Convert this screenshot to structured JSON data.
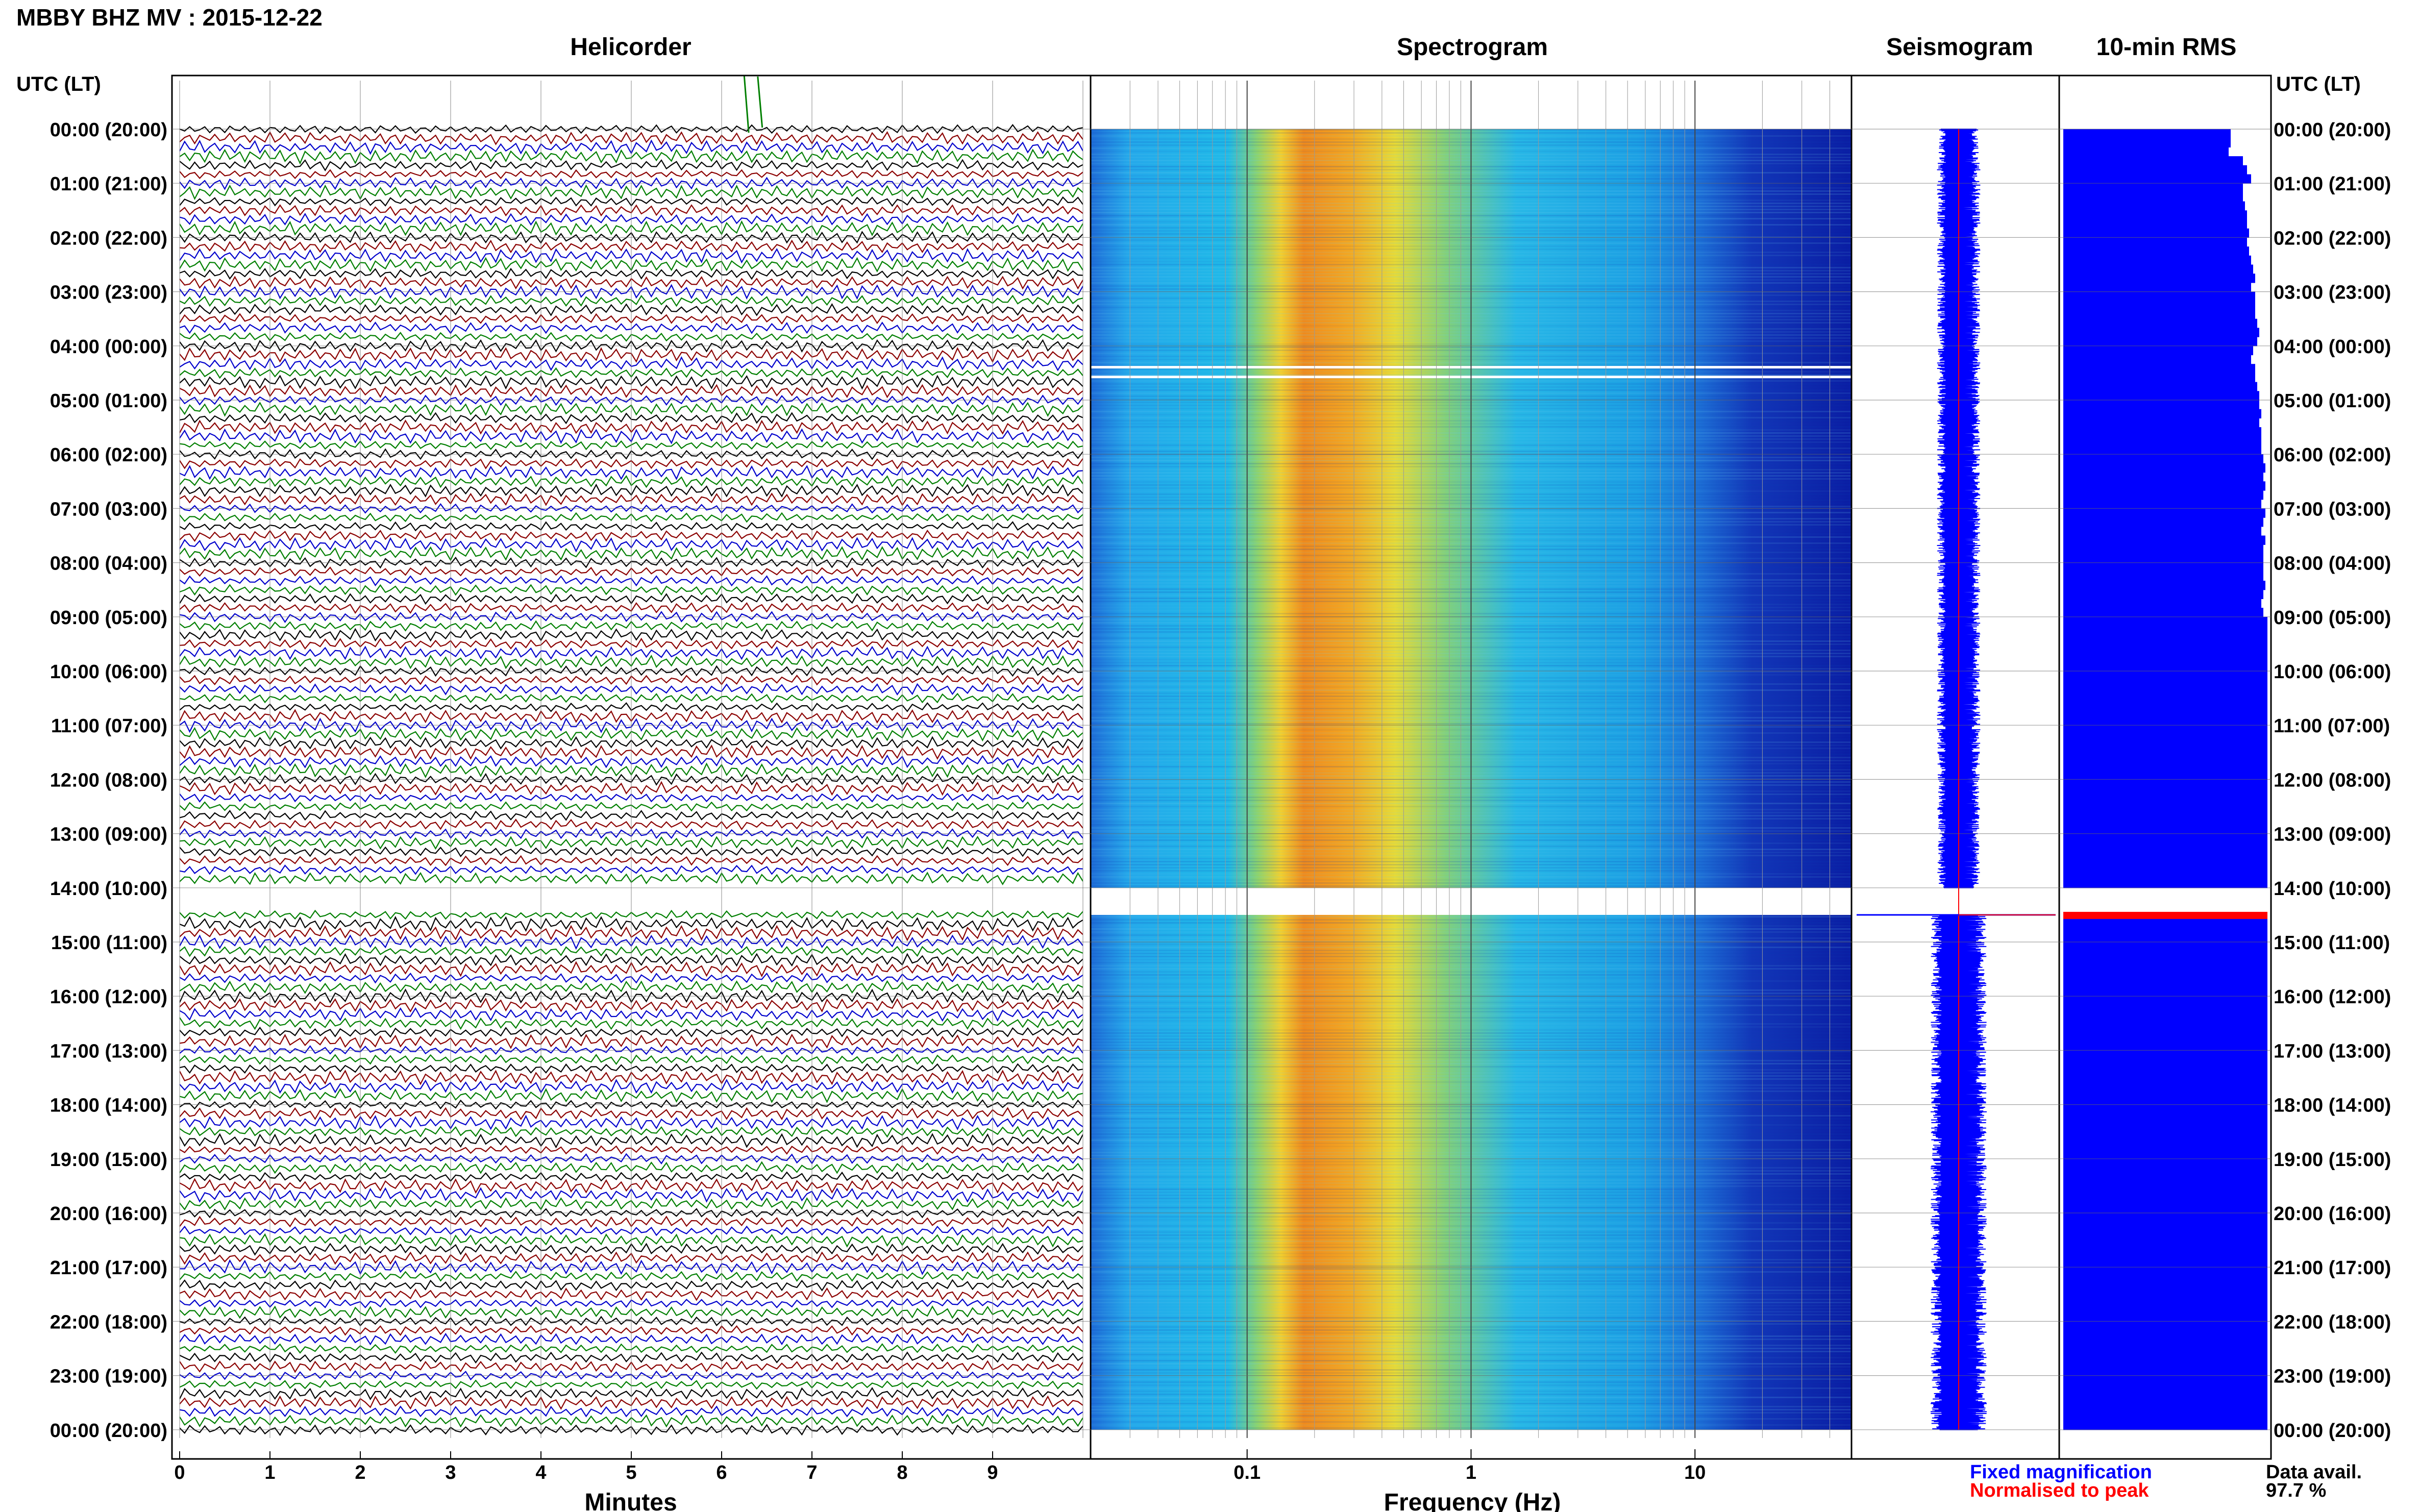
{
  "page": {
    "title": "MBBY BHZ MV : 2015-12-22",
    "time_header": "UTC (LT)",
    "data_avail_label": "Data avail.",
    "data_avail_value": "97.7 %",
    "legend_fixed": "Fixed magnification",
    "legend_normalised": "Normalised to peak"
  },
  "colors": {
    "trace_cycle": [
      "#000000",
      "#8b0000",
      "#0000cc",
      "#007f00"
    ],
    "seismogram": "#0000ff",
    "rms": "#0000ff",
    "peak_marker": "#ff0000",
    "legend_fixed": "#0000ff",
    "legend_normalised": "#ff0000"
  },
  "chart_data": [
    {
      "type": "line",
      "title": "Helicorder",
      "xlabel": "Minutes",
      "xlim": [
        0,
        10
      ],
      "x_ticks": [
        "0",
        "1",
        "2",
        "3",
        "4",
        "5",
        "6",
        "7",
        "8",
        "9"
      ],
      "y_ticks_left": [
        "00:00 (20:00)",
        "01:00 (21:00)",
        "02:00 (22:00)",
        "03:00 (23:00)",
        "04:00 (00:00)",
        "05:00 (01:00)",
        "06:00 (02:00)",
        "07:00 (03:00)",
        "08:00 (04:00)",
        "09:00 (05:00)",
        "10:00 (06:00)",
        "11:00 (07:00)",
        "12:00 (08:00)",
        "13:00 (09:00)",
        "14:00 (10:00)",
        "15:00 (11:00)",
        "16:00 (12:00)",
        "17:00 (13:00)",
        "18:00 (14:00)",
        "19:00 (15:00)",
        "20:00 (16:00)",
        "21:00 (17:00)",
        "22:00 (18:00)",
        "23:00 (19:00)",
        "00:00 (20:00)"
      ],
      "lines_per_hour": 6,
      "data_gap_utc": "14:00-14:30"
    },
    {
      "type": "heatmap",
      "title": "Spectrogram",
      "xlabel": "Frequency (Hz)",
      "x_scale": "log",
      "xlim": [
        0.02,
        50
      ],
      "x_ticks": [
        "0.1",
        "1",
        "10"
      ],
      "peak_band_hz": [
        0.18,
        0.4
      ],
      "data_gap_utc": "14:00-14:30"
    },
    {
      "type": "line",
      "title": "Seismogram",
      "data_gap_utc": "14:00-14:30"
    },
    {
      "type": "bar",
      "title": "10-min RMS",
      "y_ticks_right": [
        "00:00 (20:00)",
        "01:00 (21:00)",
        "02:00 (22:00)",
        "03:00 (23:00)",
        "04:00 (00:00)",
        "05:00 (01:00)",
        "06:00 (02:00)",
        "07:00 (03:00)",
        "08:00 (04:00)",
        "09:00 (05:00)",
        "10:00 (06:00)",
        "11:00 (07:00)",
        "12:00 (08:00)",
        "13:00 (09:00)",
        "14:00 (10:00)",
        "15:00 (11:00)",
        "16:00 (12:00)",
        "17:00 (13:00)",
        "18:00 (14:00)",
        "19:00 (15:00)",
        "20:00 (16:00)",
        "21:00 (17:00)",
        "22:00 (18:00)",
        "23:00 (19:00)",
        "00:00 (20:00)"
      ],
      "values_relative_first_9h": [
        0.82,
        0.82,
        0.81,
        0.88,
        0.9,
        0.92,
        0.88,
        0.88,
        0.89,
        0.9,
        0.9,
        0.91,
        0.9,
        0.91,
        0.92,
        0.93,
        0.94,
        0.92,
        0.94,
        0.94,
        0.94,
        0.95,
        0.96,
        0.95,
        0.93,
        0.92,
        0.94,
        0.94,
        0.95,
        0.96,
        0.96,
        0.97,
        0.96,
        0.97,
        0.97,
        0.97,
        0.98,
        0.99,
        0.98,
        0.99,
        0.98,
        0.97,
        0.99,
        0.98,
        0.97,
        0.99,
        0.98,
        0.98,
        0.98,
        0.98,
        0.99,
        0.98,
        0.97,
        0.98
      ],
      "peak_time_utc": "15:00",
      "xlim": [
        0,
        1
      ]
    }
  ]
}
